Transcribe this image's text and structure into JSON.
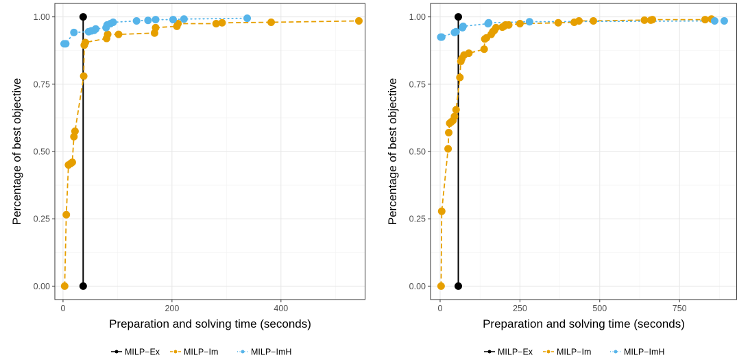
{
  "legend": {
    "entries": [
      {
        "label": "MILP−Ex",
        "color": "#000000",
        "dash": "solid"
      },
      {
        "label": "MILP−Im",
        "color": "#E69F00",
        "dash": "dashed"
      },
      {
        "label": "MILP−ImH",
        "color": "#56B4E9",
        "dash": "dotted"
      }
    ]
  },
  "chart_data": [
    {
      "type": "line",
      "xlabel": "Preparation and solving time (seconds)",
      "ylabel": "Percentage of best objective",
      "xlim": [
        -15,
        555
      ],
      "ylim": [
        -0.05,
        1.05
      ],
      "xticks": [
        0,
        200,
        400
      ],
      "yticks": [
        0,
        0.25,
        0.5,
        0.75,
        1.0
      ],
      "ytick_labels": [
        "0.00",
        "0.25",
        "0.50",
        "0.75",
        "1.00"
      ],
      "grid": true,
      "legend_position": "bottom",
      "series": [
        {
          "name": "MILP−Ex",
          "color": "#000000",
          "dash": "solid",
          "x": [
            37,
            37
          ],
          "y": [
            0.0,
            1.0
          ]
        },
        {
          "name": "MILP−Im",
          "color": "#E69F00",
          "dash": "dashed",
          "x": [
            3,
            6,
            10,
            14,
            17,
            20,
            22,
            38,
            39,
            41,
            80,
            82,
            102,
            168,
            170,
            209,
            211,
            281,
            292,
            382,
            543
          ],
          "y": [
            0.0,
            0.265,
            0.45,
            0.455,
            0.46,
            0.555,
            0.575,
            0.78,
            0.895,
            0.905,
            0.92,
            0.935,
            0.935,
            0.94,
            0.96,
            0.965,
            0.975,
            0.975,
            0.978,
            0.98,
            0.985
          ]
        },
        {
          "name": "MILP−ImH",
          "color": "#56B4E9",
          "dash": "dotted",
          "x": [
            2,
            5,
            20,
            47,
            52,
            57,
            60,
            79,
            81,
            87,
            92,
            135,
            156,
            170,
            202,
            222,
            338
          ],
          "y": [
            0.9,
            0.9,
            0.942,
            0.945,
            0.948,
            0.95,
            0.955,
            0.96,
            0.97,
            0.975,
            0.98,
            0.985,
            0.987,
            0.99,
            0.99,
            0.992,
            0.995
          ]
        }
      ]
    },
    {
      "type": "line",
      "xlabel": "Preparation and solving time (seconds)",
      "ylabel": "Percentage of best objective",
      "xlim": [
        -30,
        930
      ],
      "ylim": [
        -0.05,
        1.05
      ],
      "xticks": [
        0,
        250,
        500,
        750
      ],
      "yticks": [
        0,
        0.25,
        0.5,
        0.75,
        1.0
      ],
      "ytick_labels": [
        "0.00",
        "0.25",
        "0.50",
        "0.75",
        "1.00"
      ],
      "grid": true,
      "legend_position": "bottom",
      "series": [
        {
          "name": "MILP−Ex",
          "color": "#000000",
          "dash": "solid",
          "x": [
            57,
            57
          ],
          "y": [
            0.0,
            1.0
          ]
        },
        {
          "name": "MILP−Im",
          "color": "#E69F00",
          "dash": "dashed",
          "x": [
            3,
            5,
            25,
            27,
            30,
            35,
            40,
            45,
            50,
            62,
            65,
            68,
            75,
            90,
            138,
            140,
            145,
            160,
            165,
            170,
            175,
            195,
            200,
            205,
            215,
            250,
            370,
            420,
            435,
            480,
            640,
            660,
            665,
            830,
            850
          ],
          "y": [
            0.0,
            0.278,
            0.51,
            0.57,
            0.605,
            0.61,
            0.615,
            0.63,
            0.655,
            0.775,
            0.835,
            0.845,
            0.858,
            0.865,
            0.88,
            0.918,
            0.922,
            0.935,
            0.945,
            0.95,
            0.96,
            0.962,
            0.965,
            0.97,
            0.97,
            0.975,
            0.978,
            0.98,
            0.985,
            0.985,
            0.988,
            0.988,
            0.99,
            0.99,
            0.992
          ]
        },
        {
          "name": "MILP−ImH",
          "color": "#56B4E9",
          "dash": "dotted",
          "x": [
            2,
            5,
            45,
            50,
            70,
            72,
            150,
            152,
            280,
            860,
            890
          ],
          "y": [
            0.925,
            0.925,
            0.942,
            0.945,
            0.96,
            0.965,
            0.975,
            0.978,
            0.982,
            0.985,
            0.985
          ]
        }
      ]
    }
  ]
}
